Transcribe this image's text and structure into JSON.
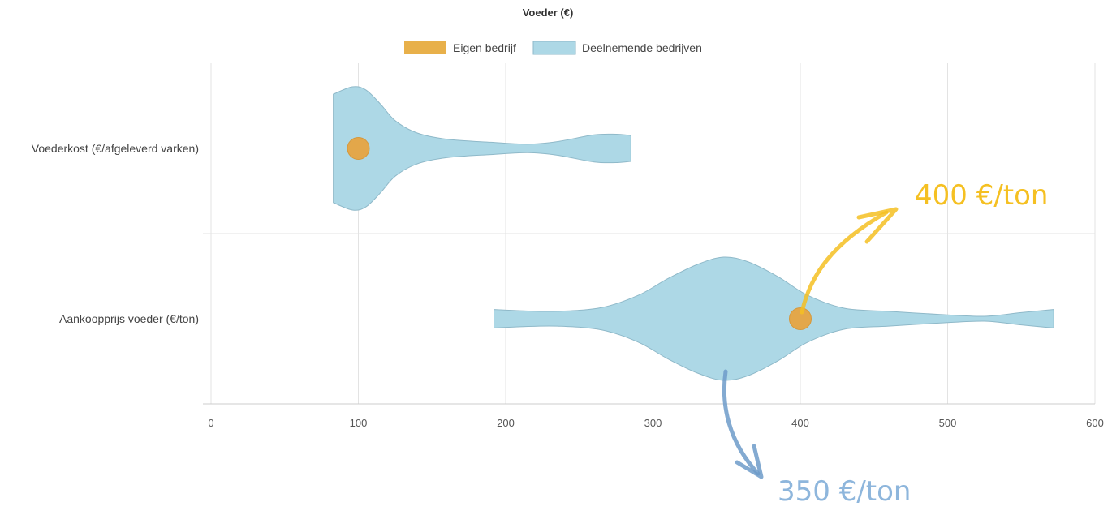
{
  "chart_data": {
    "type": "violin",
    "title": "Voeder (€)",
    "legend": {
      "placement": "top-center",
      "items": [
        {
          "label": "Eigen bedrijf",
          "color": "#E8B04A"
        },
        {
          "label": "Deelnemende bedrijven",
          "color": "#ADD8E6"
        }
      ]
    },
    "colors": {
      "violin_fill": "#ADD8E6",
      "violin_stroke": "#8FB9C9",
      "marker_fill": "#E8A33D",
      "marker_stroke": "#D9932E",
      "grid": "#E3E3E3"
    },
    "x_ticks": [
      0,
      100,
      200,
      300,
      400,
      500,
      600
    ],
    "xlim": [
      0,
      600
    ],
    "grid": true,
    "categories": [
      "Voederkost (€/afgeleverd varken)",
      "Aankoopprijs voeder (€/ton)"
    ],
    "violins": [
      {
        "category": "Voederkost (€/afgeleverd varken)",
        "own_value": 100,
        "profile": [
          [
            83,
            0.88
          ],
          [
            96,
            1.0
          ],
          [
            105,
            0.95
          ],
          [
            115,
            0.72
          ],
          [
            125,
            0.45
          ],
          [
            140,
            0.25
          ],
          [
            160,
            0.15
          ],
          [
            190,
            0.1
          ],
          [
            215,
            0.07
          ],
          [
            235,
            0.11
          ],
          [
            260,
            0.22
          ],
          [
            275,
            0.23
          ],
          [
            285,
            0.21
          ]
        ]
      },
      {
        "category": "Aankoopprijs voeder (€/ton)",
        "own_value": 400,
        "profile": [
          [
            192,
            0.15
          ],
          [
            210,
            0.13
          ],
          [
            235,
            0.12
          ],
          [
            265,
            0.18
          ],
          [
            290,
            0.38
          ],
          [
            310,
            0.65
          ],
          [
            330,
            0.88
          ],
          [
            348,
            1.0
          ],
          [
            365,
            0.92
          ],
          [
            385,
            0.68
          ],
          [
            405,
            0.38
          ],
          [
            430,
            0.17
          ],
          [
            460,
            0.12
          ],
          [
            495,
            0.07
          ],
          [
            525,
            0.04
          ],
          [
            550,
            0.1
          ],
          [
            572,
            0.15
          ]
        ]
      }
    ],
    "annotations": [
      {
        "text": "400 €/ton",
        "color": "#F5C022"
      },
      {
        "text": "350 €/ton",
        "color": "#8EB6DC"
      }
    ]
  }
}
